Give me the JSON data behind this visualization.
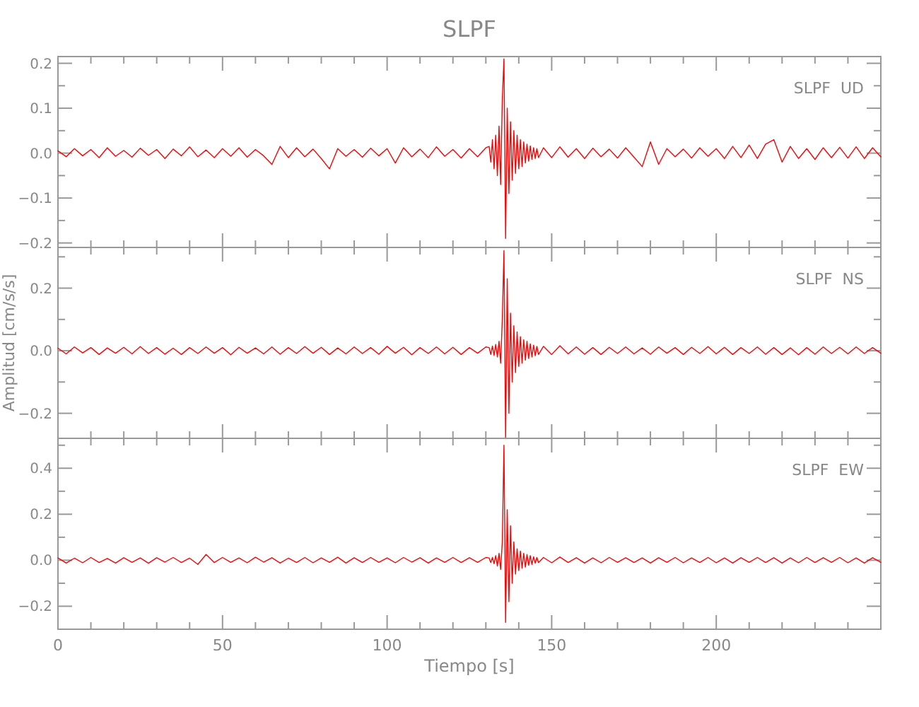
{
  "chart_data": [
    {
      "type": "line",
      "title": "SLPF",
      "annotations": [
        "SLPF  UD"
      ],
      "xlim": [
        0,
        250
      ],
      "ylim": [
        -0.21,
        0.215
      ],
      "tick_labels": "y",
      "line_style": "solid",
      "xticks": [
        0,
        {
          "value": 10,
          "label": null
        },
        {
          "value": 20,
          "label": null
        },
        {
          "value": 30,
          "label": null
        },
        {
          "value": 40,
          "label": null
        },
        50,
        {
          "value": 60,
          "label": null
        },
        {
          "value": 70,
          "label": null
        },
        {
          "value": 80,
          "label": null
        },
        {
          "value": 90,
          "label": null
        },
        100,
        {
          "value": 110,
          "label": null
        },
        {
          "value": 120,
          "label": null
        },
        {
          "value": 130,
          "label": null
        },
        {
          "value": 140,
          "label": null
        },
        150,
        {
          "value": 160,
          "label": null
        },
        {
          "value": 170,
          "label": null
        },
        {
          "value": 180,
          "label": null
        },
        {
          "value": 190,
          "label": null
        },
        200,
        {
          "value": 210,
          "label": null
        },
        {
          "value": 220,
          "label": null
        },
        {
          "value": 230,
          "label": null
        },
        {
          "value": 240,
          "label": null
        }
      ],
      "yticks": [
        {
          "value": -0.2,
          "label": "−0.2"
        },
        {
          "value": -0.15,
          "label": null
        },
        {
          "value": -0.1,
          "label": "−0.1"
        },
        {
          "value": -0.05,
          "label": null
        },
        {
          "value": 0,
          "label": "0.0"
        },
        {
          "value": 0.05,
          "label": null
        },
        0.1,
        {
          "value": 0.15,
          "label": null
        },
        0.2
      ],
      "x": [
        0,
        2.5,
        5,
        7.5,
        10,
        12.5,
        15,
        17.5,
        20,
        22.5,
        25,
        27.5,
        30,
        32.5,
        35,
        37.5,
        40,
        42.5,
        45,
        47.5,
        50,
        52.5,
        55,
        57.5,
        60,
        62.5,
        65,
        67.5,
        70,
        72.5,
        75,
        77.5,
        80,
        82.5,
        85,
        87.5,
        90,
        92.5,
        95,
        97.5,
        100,
        102.5,
        105,
        107.5,
        110,
        112.5,
        115,
        117.5,
        120,
        122.5,
        125,
        127.5,
        130,
        131,
        131.5,
        132,
        132.5,
        133,
        133.5,
        134,
        134.5,
        135,
        135.5,
        136,
        136.5,
        137,
        137.5,
        138,
        138.5,
        139,
        139.5,
        140,
        140.5,
        141,
        141.5,
        142,
        142.5,
        143,
        143.5,
        144,
        144.5,
        145,
        145.5,
        146,
        147.5,
        150,
        152.5,
        155,
        157.5,
        160,
        162.5,
        165,
        167.5,
        170,
        172.5,
        175,
        177.5,
        180,
        182.5,
        185,
        187.5,
        190,
        192.5,
        195,
        197.5,
        200,
        202.5,
        205,
        207.5,
        210,
        212.5,
        215,
        217.5,
        220,
        222.5,
        225,
        227.5,
        230,
        232.5,
        235,
        237.5,
        240,
        242.5,
        245,
        247.5,
        250
      ],
      "series": [
        {
          "color": "#ff0000",
          "values": [
            0.005,
            -0.008,
            0.01,
            -0.006,
            0.008,
            -0.01,
            0.012,
            -0.007,
            0.006,
            -0.009,
            0.011,
            -0.005,
            0.008,
            -0.012,
            0.009,
            -0.006,
            0.014,
            -0.008,
            0.007,
            -0.01,
            0.01,
            -0.007,
            0.012,
            -0.009,
            0.008,
            -0.006,
            -0.025,
            0.015,
            -0.01,
            0.012,
            -0.008,
            0.009,
            -0.012,
            -0.035,
            0.01,
            -0.007,
            0.008,
            -0.009,
            0.011,
            -0.006,
            0.01,
            -0.022,
            0.012,
            -0.008,
            0.009,
            -0.01,
            0.014,
            -0.007,
            0.008,
            -0.011,
            0.01,
            -0.008,
            0.012,
            0.015,
            -0.02,
            0.03,
            -0.035,
            0.04,
            -0.05,
            0.06,
            -0.07,
            0.12,
            0.21,
            -0.19,
            0.1,
            -0.09,
            0.07,
            -0.06,
            0.05,
            -0.045,
            0.04,
            -0.035,
            0.03,
            -0.03,
            0.025,
            -0.022,
            0.02,
            -0.018,
            0.016,
            -0.014,
            0.012,
            -0.012,
            0.01,
            -0.01,
            0.012,
            -0.01,
            0.014,
            -0.009,
            0.01,
            -0.012,
            0.011,
            -0.008,
            0.009,
            -0.011,
            0.012,
            -0.009,
            -0.03,
            0.025,
            -0.025,
            0.01,
            -0.008,
            0.009,
            -0.011,
            0.012,
            -0.007,
            0.01,
            -0.012,
            0.015,
            -0.01,
            0.018,
            -0.012,
            0.02,
            0.03,
            -0.02,
            0.015,
            -0.012,
            0.01,
            -0.014,
            0.012,
            -0.01,
            0.013,
            -0.011,
            0.014,
            -0.012,
            0.012,
            -0.008
          ]
        }
      ]
    },
    {
      "type": "line",
      "ylabel": "Amplitud [cm/s/s]",
      "annotations": [
        "SLPF  NS"
      ],
      "xlim": [
        0,
        250
      ],
      "ylim": [
        -0.28,
        0.33
      ],
      "tick_labels": "y",
      "line_style": "solid",
      "xticks": [
        0,
        {
          "value": 10,
          "label": null
        },
        {
          "value": 20,
          "label": null
        },
        {
          "value": 30,
          "label": null
        },
        {
          "value": 40,
          "label": null
        },
        50,
        {
          "value": 60,
          "label": null
        },
        {
          "value": 70,
          "label": null
        },
        {
          "value": 80,
          "label": null
        },
        {
          "value": 90,
          "label": null
        },
        100,
        {
          "value": 110,
          "label": null
        },
        {
          "value": 120,
          "label": null
        },
        {
          "value": 130,
          "label": null
        },
        {
          "value": 140,
          "label": null
        },
        150,
        {
          "value": 160,
          "label": null
        },
        {
          "value": 170,
          "label": null
        },
        {
          "value": 180,
          "label": null
        },
        {
          "value": 190,
          "label": null
        },
        200,
        {
          "value": 210,
          "label": null
        },
        {
          "value": 220,
          "label": null
        },
        {
          "value": 230,
          "label": null
        },
        {
          "value": 240,
          "label": null
        }
      ],
      "yticks": [
        {
          "value": -0.2,
          "label": "−0.2"
        },
        {
          "value": -0.1,
          "label": null
        },
        {
          "value": 0,
          "label": "0.0"
        },
        {
          "value": 0.1,
          "label": null
        },
        0.2,
        {
          "value": 0.3,
          "label": null
        }
      ],
      "x": [
        0,
        2.5,
        5,
        7.5,
        10,
        12.5,
        15,
        17.5,
        20,
        22.5,
        25,
        27.5,
        30,
        32.5,
        35,
        37.5,
        40,
        42.5,
        45,
        47.5,
        50,
        52.5,
        55,
        57.5,
        60,
        62.5,
        65,
        67.5,
        70,
        72.5,
        75,
        77.5,
        80,
        82.5,
        85,
        87.5,
        90,
        92.5,
        95,
        97.5,
        100,
        102.5,
        105,
        107.5,
        110,
        112.5,
        115,
        117.5,
        120,
        122.5,
        125,
        127.5,
        130,
        131,
        131.5,
        132,
        132.5,
        133,
        133.5,
        134,
        134.5,
        135,
        135.5,
        136,
        136.5,
        137,
        137.5,
        138,
        138.5,
        139,
        139.5,
        140,
        140.5,
        141,
        141.5,
        142,
        142.5,
        143,
        143.5,
        144,
        144.5,
        145,
        145.5,
        146,
        147.5,
        150,
        152.5,
        155,
        157.5,
        160,
        162.5,
        165,
        167.5,
        170,
        172.5,
        175,
        177.5,
        180,
        182.5,
        185,
        187.5,
        190,
        192.5,
        195,
        197.5,
        200,
        202.5,
        205,
        207.5,
        210,
        212.5,
        215,
        217.5,
        220,
        222.5,
        225,
        227.5,
        230,
        232.5,
        235,
        237.5,
        240,
        242.5,
        245,
        247.5,
        250
      ],
      "series": [
        {
          "color": "#ff0000",
          "values": [
            0.008,
            -0.01,
            0.012,
            -0.007,
            0.01,
            -0.012,
            0.009,
            -0.008,
            0.011,
            -0.01,
            0.013,
            -0.009,
            0.01,
            -0.011,
            0.008,
            -0.012,
            0.01,
            -0.009,
            0.012,
            -0.008,
            0.01,
            -0.013,
            0.011,
            -0.008,
            0.009,
            -0.01,
            0.012,
            -0.011,
            0.01,
            -0.009,
            0.013,
            -0.008,
            0.011,
            -0.012,
            0.009,
            -0.01,
            0.012,
            -0.009,
            0.01,
            -0.011,
            0.014,
            -0.008,
            0.011,
            -0.013,
            0.01,
            -0.009,
            0.012,
            -0.01,
            0.011,
            -0.012,
            0.01,
            -0.008,
            0.012,
            0.01,
            -0.012,
            0.015,
            -0.015,
            0.02,
            -0.02,
            0.03,
            -0.04,
            0.1,
            0.32,
            -0.28,
            0.23,
            -0.2,
            0.12,
            -0.1,
            0.08,
            -0.07,
            0.06,
            -0.05,
            0.045,
            -0.04,
            0.035,
            -0.03,
            0.03,
            -0.025,
            0.022,
            -0.02,
            0.018,
            -0.016,
            0.014,
            -0.012,
            0.014,
            -0.012,
            0.016,
            -0.01,
            0.012,
            -0.011,
            0.01,
            -0.012,
            0.011,
            -0.009,
            0.012,
            -0.01,
            0.009,
            -0.011,
            0.012,
            -0.008,
            0.01,
            -0.012,
            0.011,
            -0.009,
            0.013,
            -0.01,
            0.011,
            -0.012,
            0.01,
            -0.009,
            0.012,
            -0.011,
            0.01,
            -0.012,
            0.009,
            -0.013,
            0.01,
            -0.011,
            0.012,
            -0.009,
            0.011,
            -0.01,
            0.012,
            -0.009,
            0.01,
            -0.008
          ]
        }
      ]
    },
    {
      "type": "line",
      "xlabel": "Tiempo [s]",
      "annotations": [
        "SLPF  EW"
      ],
      "xlim": [
        0,
        250
      ],
      "ylim": [
        -0.3,
        0.53
      ],
      "line_style": "solid",
      "xticks": [
        0,
        {
          "value": 10,
          "label": null
        },
        {
          "value": 20,
          "label": null
        },
        {
          "value": 30,
          "label": null
        },
        {
          "value": 40,
          "label": null
        },
        50,
        {
          "value": 60,
          "label": null
        },
        {
          "value": 70,
          "label": null
        },
        {
          "value": 80,
          "label": null
        },
        {
          "value": 90,
          "label": null
        },
        100,
        {
          "value": 110,
          "label": null
        },
        {
          "value": 120,
          "label": null
        },
        {
          "value": 130,
          "label": null
        },
        {
          "value": 140,
          "label": null
        },
        150,
        {
          "value": 160,
          "label": null
        },
        {
          "value": 170,
          "label": null
        },
        {
          "value": 180,
          "label": null
        },
        {
          "value": 190,
          "label": null
        },
        200,
        {
          "value": 210,
          "label": null
        },
        {
          "value": 220,
          "label": null
        },
        {
          "value": 230,
          "label": null
        },
        {
          "value": 240,
          "label": null
        }
      ],
      "yticks": [
        {
          "value": -0.2,
          "label": "−0.2"
        },
        {
          "value": -0.1,
          "label": null
        },
        {
          "value": 0,
          "label": "0.0"
        },
        {
          "value": 0.1,
          "label": null
        },
        0.2,
        {
          "value": 0.3,
          "label": null
        },
        0.4,
        {
          "value": 0.5,
          "label": null
        }
      ],
      "x": [
        0,
        2.5,
        5,
        7.5,
        10,
        12.5,
        15,
        17.5,
        20,
        22.5,
        25,
        27.5,
        30,
        32.5,
        35,
        37.5,
        40,
        42.5,
        45,
        47.5,
        50,
        52.5,
        55,
        57.5,
        60,
        62.5,
        65,
        67.5,
        70,
        72.5,
        75,
        77.5,
        80,
        82.5,
        85,
        87.5,
        90,
        92.5,
        95,
        97.5,
        100,
        102.5,
        105,
        107.5,
        110,
        112.5,
        115,
        117.5,
        120,
        122.5,
        125,
        127.5,
        130,
        131,
        131.5,
        132,
        132.5,
        133,
        133.5,
        134,
        134.5,
        135,
        135.5,
        136,
        136.5,
        137,
        137.5,
        138,
        138.5,
        139,
        139.5,
        140,
        140.5,
        141,
        141.5,
        142,
        142.5,
        143,
        143.5,
        144,
        144.5,
        145,
        145.5,
        146,
        147.5,
        150,
        152.5,
        155,
        157.5,
        160,
        162.5,
        165,
        167.5,
        170,
        172.5,
        175,
        177.5,
        180,
        182.5,
        185,
        187.5,
        190,
        192.5,
        195,
        197.5,
        200,
        202.5,
        205,
        207.5,
        210,
        212.5,
        215,
        217.5,
        220,
        222.5,
        225,
        227.5,
        230,
        232.5,
        235,
        237.5,
        240,
        242.5,
        245,
        247.5,
        250
      ],
      "series": [
        {
          "color": "#ff0000",
          "values": [
            0.01,
            -0.012,
            0.009,
            -0.011,
            0.012,
            -0.01,
            0.008,
            -0.012,
            0.011,
            -0.009,
            0.01,
            -0.013,
            0.011,
            -0.008,
            0.012,
            -0.01,
            0.009,
            -0.018,
            0.025,
            -0.01,
            0.012,
            -0.009,
            0.01,
            -0.011,
            0.013,
            -0.008,
            0.011,
            -0.012,
            0.009,
            -0.01,
            0.012,
            -0.011,
            0.01,
            -0.009,
            0.013,
            -0.012,
            0.011,
            -0.01,
            0.012,
            -0.009,
            0.01,
            -0.011,
            0.012,
            -0.008,
            0.011,
            -0.012,
            0.01,
            -0.009,
            0.012,
            -0.01,
            0.011,
            -0.009,
            0.012,
            0.01,
            -0.01,
            0.012,
            -0.015,
            0.02,
            -0.025,
            0.03,
            -0.04,
            0.08,
            0.5,
            -0.27,
            0.22,
            -0.18,
            0.15,
            -0.1,
            0.08,
            -0.06,
            0.05,
            -0.045,
            0.04,
            -0.035,
            0.03,
            -0.03,
            0.025,
            -0.022,
            0.02,
            -0.018,
            0.015,
            -0.013,
            0.012,
            -0.01,
            0.012,
            -0.011,
            0.014,
            -0.01,
            0.011,
            -0.012,
            0.01,
            -0.011,
            0.012,
            -0.009,
            0.011,
            -0.01,
            0.01,
            -0.012,
            0.011,
            -0.009,
            0.012,
            -0.011,
            0.01,
            -0.01,
            0.012,
            -0.011,
            0.01,
            -0.012,
            0.011,
            -0.009,
            0.012,
            -0.01,
            0.011,
            -0.012,
            0.01,
            -0.011,
            0.012,
            -0.01,
            0.011,
            -0.009,
            0.012,
            -0.011,
            0.01,
            -0.012,
            0.011,
            -0.009
          ]
        }
      ]
    }
  ]
}
